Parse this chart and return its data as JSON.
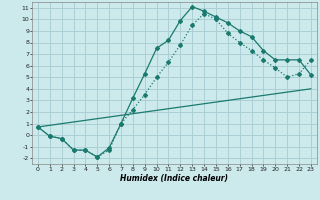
{
  "xlabel": "Humidex (Indice chaleur)",
  "background_color": "#cce9ec",
  "grid_color": "#aacfd4",
  "line_color": "#1a7a6e",
  "xlim": [
    -0.5,
    23.5
  ],
  "ylim": [
    -2.5,
    11.5
  ],
  "xticks": [
    0,
    1,
    2,
    3,
    4,
    5,
    6,
    7,
    8,
    9,
    10,
    11,
    12,
    13,
    14,
    15,
    16,
    17,
    18,
    19,
    20,
    21,
    22,
    23
  ],
  "yticks": [
    -2,
    -1,
    0,
    1,
    2,
    3,
    4,
    5,
    6,
    7,
    8,
    9,
    10,
    11
  ],
  "line1_x": [
    0,
    1,
    2,
    3,
    4,
    5,
    6,
    7,
    8,
    9,
    10,
    11,
    12,
    13,
    14,
    15,
    16,
    17,
    18,
    19,
    20,
    21,
    22,
    23
  ],
  "line1_y": [
    0.7,
    -0.1,
    -0.3,
    -1.3,
    -1.3,
    -1.9,
    -1.1,
    1.0,
    3.2,
    5.3,
    7.5,
    8.2,
    9.9,
    11.1,
    10.7,
    10.2,
    9.7,
    9.0,
    8.5,
    7.3,
    6.5,
    6.5,
    6.5,
    5.2
  ],
  "line2_x": [
    0,
    1,
    2,
    3,
    4,
    5,
    6,
    7,
    8,
    9,
    10,
    11,
    12,
    13,
    14,
    15,
    16,
    17,
    18,
    19,
    20,
    21,
    22,
    23
  ],
  "line2_y": [
    0.7,
    -0.1,
    -0.3,
    -1.3,
    -1.3,
    -1.9,
    -1.3,
    1.0,
    2.2,
    3.5,
    5.0,
    6.3,
    7.8,
    9.5,
    10.5,
    10.0,
    8.8,
    8.0,
    7.3,
    6.5,
    5.8,
    5.0,
    5.3,
    6.5
  ],
  "line3_x": [
    0,
    23
  ],
  "line3_y": [
    0.7,
    4.0
  ]
}
